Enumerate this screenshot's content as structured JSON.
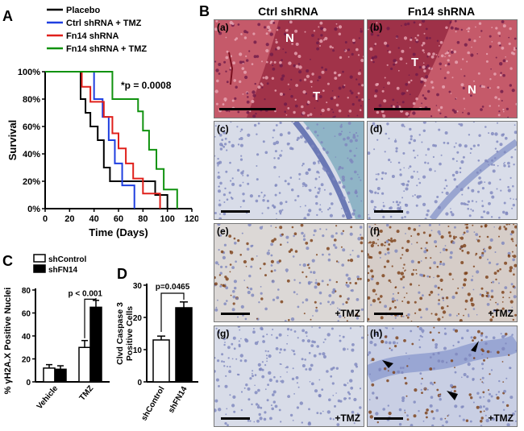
{
  "panels": {
    "A": "A",
    "B": "B",
    "C": "C",
    "D": "D"
  },
  "headers": {
    "col1": "Ctrl shRNA",
    "col2": "Fn14 shRNA"
  },
  "survival": {
    "chart_data": {
      "type": "line",
      "xlabel": "Time (Days)",
      "ylabel": "Survival",
      "xlim": [
        0,
        120
      ],
      "ylim": [
        0,
        100
      ],
      "xticks": [
        "0",
        "20",
        "40",
        "60",
        "80",
        "100",
        "120"
      ],
      "yticks": [
        "0%",
        "20%",
        "40%",
        "60%",
        "80%",
        "100%"
      ],
      "annotation": "*p = 0.0008",
      "legend_position": "top",
      "series": [
        {
          "name": "Placebo",
          "color": "#000000",
          "x": [
            0,
            26,
            29,
            33,
            37,
            43,
            48,
            53,
            90,
            100
          ],
          "y": [
            100,
            100,
            80,
            70,
            60,
            50,
            30,
            20,
            10,
            0
          ]
        },
        {
          "name": "Ctrl shRNA + TMZ",
          "color": "#1f3fe0",
          "x": [
            0,
            34,
            40,
            47,
            52,
            57,
            63,
            73
          ],
          "y": [
            100,
            100,
            80,
            67,
            50,
            33,
            17,
            0
          ]
        },
        {
          "name": "Fn14 shRNA",
          "color": "#e0201b",
          "x": [
            0,
            8,
            30,
            37,
            48,
            55,
            60,
            66,
            72,
            80,
            94
          ],
          "y": [
            100,
            100,
            89,
            78,
            67,
            55,
            44,
            33,
            22,
            11,
            0
          ]
        },
        {
          "name": "Fn14 shRNA + TMZ",
          "color": "#10920f",
          "x": [
            0,
            48,
            55,
            76,
            80,
            85,
            91,
            97,
            108
          ],
          "y": [
            100,
            100,
            80,
            71,
            57,
            43,
            29,
            14,
            0
          ]
        }
      ]
    }
  },
  "gamma": {
    "chart_data": {
      "type": "bar",
      "ylabel": "% γH2A.X Positive Nuclei",
      "ylim": [
        0,
        80
      ],
      "yticks": [
        "0",
        "20",
        "40",
        "60",
        "80"
      ],
      "categories": [
        "Vehicle",
        "TMZ"
      ],
      "series": [
        {
          "name": "shControl",
          "color": "#ffffff",
          "values": [
            12,
            30
          ],
          "errors": [
            3,
            6
          ]
        },
        {
          "name": "shFN14",
          "color": "#000000",
          "values": [
            11,
            65
          ],
          "errors": [
            3,
            6
          ]
        }
      ],
      "annotation": "p < 0.001"
    }
  },
  "caspase": {
    "chart_data": {
      "type": "bar",
      "ylabel": "Clvd Caspase 3 Positive Cells",
      "ylim": [
        0,
        30
      ],
      "yticks": [
        "0",
        "10",
        "20",
        "30"
      ],
      "categories": [
        "shControl",
        "shFN14"
      ],
      "values": [
        13,
        23
      ],
      "errors": [
        1.2,
        1.8
      ],
      "colors": [
        "#ffffff",
        "#000000"
      ],
      "annotation": "p=0.0465"
    }
  },
  "micrographs": {
    "a": {
      "label": "(a)",
      "region1": "N",
      "region2": "T"
    },
    "b": {
      "label": "(b)",
      "region1": "T",
      "region2": "N"
    },
    "c": {
      "label": "(c)"
    },
    "d": {
      "label": "(d)"
    },
    "e": {
      "label": "(e)",
      "treatment": "+TMZ"
    },
    "f": {
      "label": "(f)",
      "treatment": "+TMZ"
    },
    "g": {
      "label": "(g)",
      "treatment": "+TMZ"
    },
    "h": {
      "label": "(h)",
      "treatment": "+TMZ"
    }
  }
}
